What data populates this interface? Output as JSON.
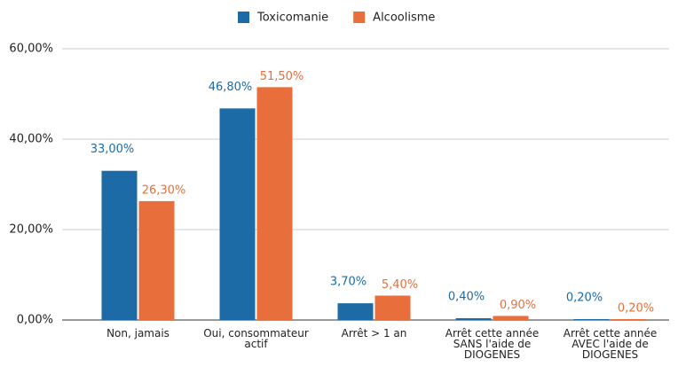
{
  "chart_data": {
    "type": "bar",
    "categories": [
      "Non, jamais",
      "Oui, consommateur actif",
      "Arrêt > 1 an",
      "Arrêt cette année SANS l'aide de DIOGENES",
      "Arrêt cette année AVEC l'aide de DIOGENES"
    ],
    "series": [
      {
        "name": "Toxicomanie",
        "color": "#1c6aa6",
        "values": [
          33,
          46.8,
          3.7,
          0.4,
          0.2
        ],
        "value_labels": [
          "33,00%",
          "46,80%",
          "3,70%",
          "0,40%",
          "0,20%"
        ]
      },
      {
        "name": "Alcoolisme",
        "color": "#e86f3c",
        "values": [
          26.3,
          51.5,
          5.4,
          0.9,
          0.2
        ],
        "value_labels": [
          "26,30%",
          "51,50%",
          "5,40%",
          "0,90%",
          "0,20%"
        ]
      }
    ],
    "ylim": [
      0,
      60
    ],
    "yticks": [
      {
        "value": 0,
        "label": "0,00%"
      },
      {
        "value": 20,
        "label": "20,00%"
      },
      {
        "value": 40,
        "label": "40,00%"
      },
      {
        "value": 60,
        "label": "60,00%"
      }
    ],
    "grid": true,
    "legend": "top"
  }
}
